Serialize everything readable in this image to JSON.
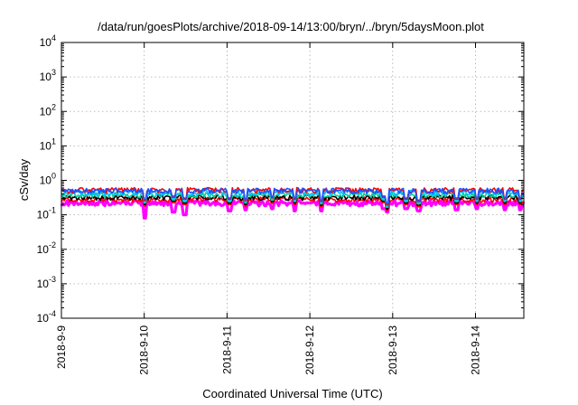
{
  "chart_data": {
    "type": "line",
    "title": "/data/run/goesPlots/archive/2018-09-14/13:00/bryn/../bryn/5daysMoon.plot",
    "xlabel": "Coordinated Universal Time (UTC)",
    "ylabel": "cSv/day",
    "yscale": "log",
    "ylim": [
      0.0001,
      10000
    ],
    "y_tick_labels": [
      {
        "base": "10",
        "exp": "-4"
      },
      {
        "base": "10",
        "exp": "-3"
      },
      {
        "base": "10",
        "exp": "-2"
      },
      {
        "base": "10",
        "exp": "-1"
      },
      {
        "base": "10",
        "exp": "0"
      },
      {
        "base": "10",
        "exp": "1"
      },
      {
        "base": "10",
        "exp": "2"
      },
      {
        "base": "10",
        "exp": "3"
      },
      {
        "base": "10",
        "exp": "4"
      }
    ],
    "x_tick_labels": [
      "2018-9-9",
      "2018-9-10",
      "2018-9-11",
      "2018-9-12",
      "2018-9-13",
      "2018-9-14"
    ],
    "xlim": [
      "2018-09-09T00:00",
      "2018-09-14T14:00"
    ],
    "grid": true,
    "legend": "none",
    "series": [
      {
        "color": "#ff00ff",
        "base": 0.22,
        "approx_range": [
          0.08,
          0.3
        ]
      },
      {
        "color": "#ff0000",
        "base": 0.28,
        "approx_range": [
          0.13,
          0.35
        ]
      },
      {
        "color": "#000000",
        "base": 0.32,
        "approx_range": [
          0.14,
          0.38
        ]
      },
      {
        "color": "#00d0a0",
        "base": 0.38,
        "approx_range": [
          0.15,
          0.45
        ]
      },
      {
        "color": "#00c0ff",
        "base": 0.45,
        "approx_range": [
          0.16,
          0.55
        ]
      },
      {
        "color": "#ff0000",
        "base": 0.52,
        "approx_range": [
          0.17,
          0.8
        ]
      },
      {
        "color": "#1e50ff",
        "base": 0.5,
        "approx_range": [
          0.16,
          0.75
        ]
      }
    ],
    "dips": [
      {
        "x": "2018-09-10T00:10",
        "magenta": 0.07,
        "others": 0.2
      },
      {
        "x": "2018-09-10T08:30",
        "magenta": 0.12,
        "others": 0.25
      },
      {
        "x": "2018-09-10T11:40",
        "magenta": 0.1,
        "others": 0.22
      },
      {
        "x": "2018-09-11T00:40",
        "magenta": 0.13,
        "others": 0.22
      },
      {
        "x": "2018-09-11T05:30",
        "magenta": 0.14,
        "others": 0.2
      },
      {
        "x": "2018-09-11T13:00",
        "magenta": 0.15,
        "others": 0.24
      },
      {
        "x": "2018-09-11T19:30",
        "magenta": 0.13,
        "others": 0.22
      },
      {
        "x": "2018-09-12T03:20",
        "magenta": 0.13,
        "others": 0.19
      },
      {
        "x": "2018-09-12T21:20",
        "magenta": 0.15,
        "others": 0.25
      },
      {
        "x": "2018-09-12T22:30",
        "magenta": 0.12,
        "others": 0.15
      },
      {
        "x": "2018-09-13T03:50",
        "magenta": 0.15,
        "others": 0.22
      },
      {
        "x": "2018-09-13T07:30",
        "magenta": 0.13,
        "others": 0.19
      },
      {
        "x": "2018-09-13T18:30",
        "magenta": 0.14,
        "others": 0.22
      },
      {
        "x": "2018-09-14T00:30",
        "magenta": 0.15,
        "others": 0.22
      },
      {
        "x": "2018-09-14T08:30",
        "magenta": 0.14,
        "others": 0.22
      },
      {
        "x": "2018-09-14T13:00",
        "magenta": 0.14,
        "others": 0.22
      }
    ]
  }
}
